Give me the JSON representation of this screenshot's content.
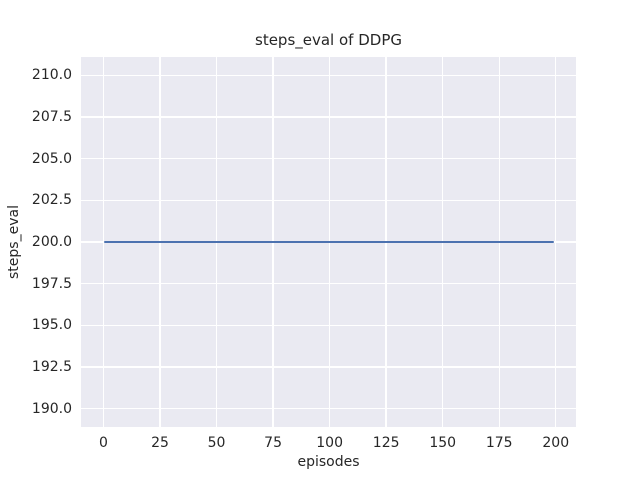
{
  "chart_data": {
    "type": "line",
    "title": "steps_eval of DDPG",
    "xlabel": "episodes",
    "ylabel": "steps_eval",
    "x_ticks": [
      0,
      25,
      50,
      75,
      100,
      125,
      150,
      175,
      200
    ],
    "y_ticks": [
      190.0,
      192.5,
      195.0,
      197.5,
      200.0,
      202.5,
      205.0,
      207.5,
      210.0
    ],
    "xlim": [
      -9.95,
      208.95
    ],
    "ylim": [
      188.9,
      211.1
    ],
    "grid": true,
    "legend_visible": false,
    "series": [
      {
        "name": "DDPG",
        "color": "#4c72b0",
        "x": [
          0,
          199
        ],
        "y": [
          200.0,
          200.0
        ]
      }
    ],
    "colors": {
      "figure_background": "#ffffff",
      "panel_background": "#eaeaf2",
      "gridline": "#ffffff",
      "text": "#262626",
      "line": "#4c72b0"
    }
  }
}
